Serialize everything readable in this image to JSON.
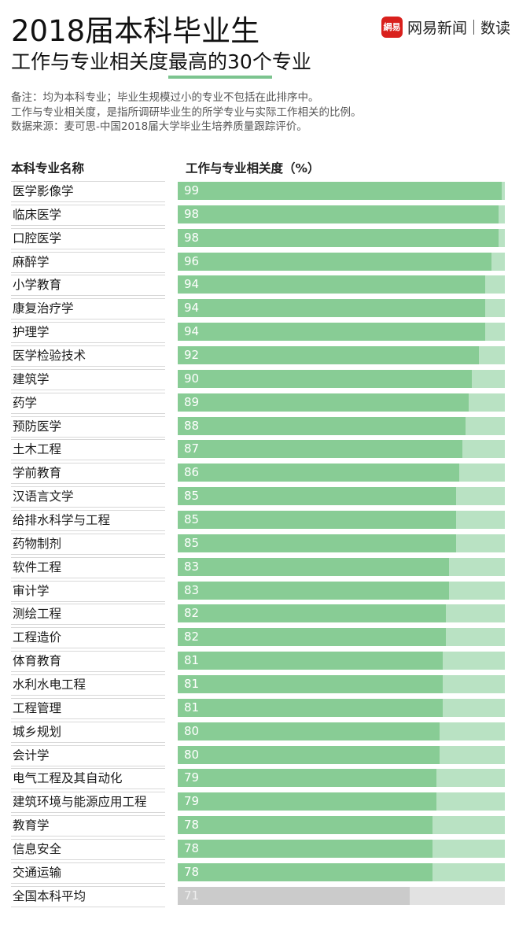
{
  "header": {
    "title": "2018届本科毕业生",
    "subtitle_pre": "工作与专业相关度",
    "subtitle_highlight": "最高的30个",
    "subtitle_post": "专业",
    "highlight_color": "#7cc48f"
  },
  "brand": {
    "logo_text": "網易",
    "name": "网易新闻",
    "sub": "数读",
    "logo_color": "#d9201c"
  },
  "notes": [
    "备注：均为本科专业；毕业生规模过小的专业不包括在此排序中。",
    "工作与专业相关度，是指所调研毕业生的所学专业与实际工作相关的比例。",
    "数据来源：麦可思-中国2018届大学毕业生培养质量跟踪评价。"
  ],
  "columns": {
    "left": "本科专业名称",
    "right": "工作与专业相关度（%）"
  },
  "colors": {
    "bar_fill": "#88cc95",
    "bar_track": "#b9e2c3",
    "avg_fill": "#cbcbcb",
    "avg_track": "#e2e2e2"
  },
  "rows": [
    {
      "name": "医学影像学",
      "value": 99
    },
    {
      "name": "临床医学",
      "value": 98
    },
    {
      "name": "口腔医学",
      "value": 98
    },
    {
      "name": "麻醉学",
      "value": 96
    },
    {
      "name": "小学教育",
      "value": 94
    },
    {
      "name": "康复治疗学",
      "value": 94
    },
    {
      "name": "护理学",
      "value": 94
    },
    {
      "name": "医学检验技术",
      "value": 92
    },
    {
      "name": "建筑学",
      "value": 90
    },
    {
      "name": "药学",
      "value": 89
    },
    {
      "name": "预防医学",
      "value": 88
    },
    {
      "name": "土木工程",
      "value": 87
    },
    {
      "name": "学前教育",
      "value": 86
    },
    {
      "name": "汉语言文学",
      "value": 85
    },
    {
      "name": "给排水科学与工程",
      "value": 85
    },
    {
      "name": "药物制剂",
      "value": 85
    },
    {
      "name": "软件工程",
      "value": 83
    },
    {
      "name": "审计学",
      "value": 83
    },
    {
      "name": "测绘工程",
      "value": 82
    },
    {
      "name": "工程造价",
      "value": 82
    },
    {
      "name": "体育教育",
      "value": 81
    },
    {
      "name": "水利水电工程",
      "value": 81
    },
    {
      "name": "工程管理",
      "value": 81
    },
    {
      "name": "城乡规划",
      "value": 80
    },
    {
      "name": "会计学",
      "value": 80
    },
    {
      "name": "电气工程及其自动化",
      "value": 79
    },
    {
      "name": "建筑环境与能源应用工程",
      "value": 79
    },
    {
      "name": "教育学",
      "value": 78
    },
    {
      "name": "信息安全",
      "value": 78
    },
    {
      "name": "交通运输",
      "value": 78
    }
  ],
  "average": {
    "name": "全国本科平均",
    "value": 71
  },
  "chart_data": {
    "type": "bar",
    "orientation": "horizontal",
    "title": "2018届本科毕业生 工作与专业相关度最高的30个专业",
    "xlabel": "工作与专业相关度（%）",
    "ylabel": "本科专业名称",
    "xlim": [
      0,
      100
    ],
    "grid": false,
    "legend": null,
    "categories": [
      "医学影像学",
      "临床医学",
      "口腔医学",
      "麻醉学",
      "小学教育",
      "康复治疗学",
      "护理学",
      "医学检验技术",
      "建筑学",
      "药学",
      "预防医学",
      "土木工程",
      "学前教育",
      "汉语言文学",
      "给排水科学与工程",
      "药物制剂",
      "软件工程",
      "审计学",
      "测绘工程",
      "工程造价",
      "体育教育",
      "水利水电工程",
      "工程管理",
      "城乡规划",
      "会计学",
      "电气工程及其自动化",
      "建筑环境与能源应用工程",
      "教育学",
      "信息安全",
      "交通运输",
      "全国本科平均"
    ],
    "values": [
      99,
      98,
      98,
      96,
      94,
      94,
      94,
      92,
      90,
      89,
      88,
      87,
      86,
      85,
      85,
      85,
      83,
      83,
      82,
      82,
      81,
      81,
      81,
      80,
      80,
      79,
      79,
      78,
      78,
      78,
      71
    ],
    "annotations": [
      "备注：均为本科专业；毕业生规模过小的专业不包括在此排序中。",
      "工作与专业相关度，是指所调研毕业生的所学专业与实际工作相关的比例。",
      "数据来源：麦可思-中国2018届大学毕业生培养质量跟踪评价。"
    ]
  }
}
